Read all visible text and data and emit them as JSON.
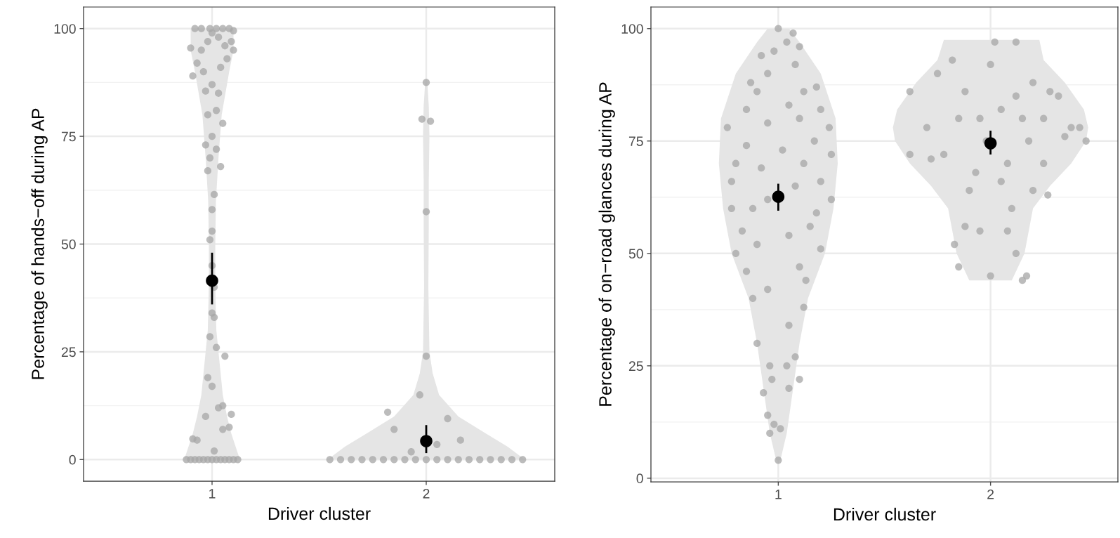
{
  "chart_data": [
    {
      "type": "scatter",
      "xlabel": "Driver cluster",
      "ylabel": "Percentage of hands−off during AP",
      "xlim": [
        0.4,
        2.6
      ],
      "xticks": [
        1,
        2
      ],
      "ylim": [
        -5,
        105
      ],
      "yticks": [
        0,
        25,
        50,
        75,
        100
      ],
      "grid": true,
      "series": [
        {
          "type": "area",
          "marker": "none",
          "color": "#e5e5e5",
          "x": [
            0.87,
            0.89,
            0.91,
            0.93,
            0.95,
            0.96,
            0.98,
            0.985,
            0.985,
            0.982,
            0.97,
            0.955,
            0.92,
            0.9,
            0.9,
            1.1,
            1.1,
            1.08,
            1.045,
            1.03,
            1.018,
            1.015,
            1.015,
            1.02,
            1.04,
            1.05,
            1.07,
            1.09,
            1.11,
            1.13
          ],
          "values": [
            0,
            3,
            6,
            10,
            15,
            20,
            30,
            40,
            50,
            60,
            70,
            80,
            90,
            95,
            100,
            100,
            95,
            90,
            80,
            70,
            60,
            50,
            40,
            30,
            20,
            15,
            10,
            6,
            3,
            0
          ]
        },
        {
          "type": "area",
          "marker": "none",
          "color": "#e5e5e5",
          "x": [
            1.54,
            1.62,
            1.72,
            1.85,
            1.94,
            1.97,
            1.985,
            1.99,
            1.988,
            1.988,
            1.985,
            1.988,
            1.995,
            2.005,
            2.012,
            2.015,
            2.012,
            2.012,
            2.01,
            2.015,
            2.03,
            2.06,
            2.15,
            2.28,
            2.38,
            2.46
          ],
          "values": [
            0,
            3,
            6,
            10,
            15,
            20,
            25,
            40,
            55,
            65,
            75,
            82,
            87.5,
            87.5,
            82,
            75,
            65,
            55,
            40,
            25,
            20,
            15,
            10,
            6,
            3,
            0
          ]
        },
        {
          "color": "#a6a6a6",
          "x": [
            0.88,
            0.9,
            0.92,
            0.94,
            0.96,
            0.98,
            1.0,
            1.02,
            1.04,
            1.06,
            1.08,
            1.1,
            1.12,
            0.93,
            0.97,
            1.05,
            1.08,
            0.91,
            1.01,
            0.98,
            1.0,
            1.03,
            1.06,
            1.02,
            0.99,
            1.01,
            1.0,
            1.01,
            1.05,
            1.09,
            1.0,
            0.99,
            1.0,
            1.0,
            1.01,
            1.04,
            0.98,
            0.99,
            1.02,
            0.97,
            1.0,
            1.05,
            0.98,
            1.02,
            1.03,
            1.0,
            0.97,
            0.91,
            0.93,
            0.95,
            0.98,
            1.0,
            1.03,
            1.06,
            1.09,
            1.1,
            0.92,
            0.95,
            0.99,
            1.02,
            1.05,
            1.08,
            1.1,
            0.96,
            1.04,
            1.07,
            0.9
          ],
          "values": [
            0,
            0,
            0,
            0,
            0,
            0,
            0,
            0,
            0,
            0,
            0,
            0,
            0,
            4.5,
            10,
            7,
            7.5,
            4.8,
            2,
            19,
            17,
            12,
            24,
            26,
            28.5,
            33,
            34,
            40,
            12.5,
            10.5,
            45,
            51,
            53,
            58,
            61.5,
            68,
            67,
            70,
            72,
            73,
            75,
            78,
            80,
            81,
            85,
            87,
            85.5,
            89,
            92,
            95,
            97,
            99,
            98,
            96,
            97,
            99.5,
            100,
            100,
            100,
            100,
            100,
            100,
            95,
            90,
            91,
            93,
            95.5
          ]
        },
        {
          "color": "#a6a6a6",
          "x": [
            1.55,
            1.6,
            1.65,
            1.7,
            1.75,
            1.8,
            1.85,
            1.9,
            1.95,
            2.0,
            2.05,
            2.1,
            2.15,
            2.2,
            2.25,
            2.3,
            2.35,
            2.4,
            2.45,
            1.82,
            1.85,
            1.97,
            2.0,
            2.0,
            1.98,
            2.02,
            2.0,
            2.1,
            2.16,
            1.93,
            2.05
          ],
          "values": [
            0,
            0,
            0,
            0,
            0,
            0,
            0,
            0,
            0,
            0,
            0,
            0,
            0,
            0,
            0,
            0,
            0,
            0,
            0,
            11,
            7,
            15,
            24,
            57.5,
            79,
            78.5,
            87.5,
            9.5,
            4.5,
            1.8,
            3.5
          ]
        },
        {
          "color": "#000000",
          "x": [
            1,
            2
          ],
          "values": [
            41.5,
            4.3
          ],
          "errors": [
            [
              36,
              48
            ],
            [
              1.5,
              8
            ]
          ]
        }
      ]
    },
    {
      "type": "scatter",
      "xlabel": "Driver cluster",
      "ylabel": "Percentage of on−road glances during AP",
      "xlim": [
        0.4,
        2.6
      ],
      "xticks": [
        1,
        2
      ],
      "ylim": [
        -0.8,
        104.8
      ],
      "yticks": [
        0,
        25,
        50,
        75,
        100
      ],
      "grid": true,
      "series": [
        {
          "type": "area",
          "marker": "none",
          "color": "#e5e5e5",
          "x": [
            0.99,
            0.96,
            0.93,
            0.9,
            0.86,
            0.78,
            0.74,
            0.72,
            0.73,
            0.8,
            0.9,
            0.95,
            1.05,
            1.1,
            1.2,
            1.27,
            1.28,
            1.26,
            1.22,
            1.14,
            1.1,
            1.07,
            1.04,
            1.01
          ],
          "values": [
            4,
            10,
            20,
            30,
            40,
            50,
            60,
            70,
            80,
            90,
            97,
            100,
            100,
            97,
            90,
            80,
            70,
            60,
            50,
            40,
            30,
            20,
            10,
            4
          ]
        },
        {
          "type": "area",
          "marker": "none",
          "color": "#e5e5e5",
          "x": [
            1.9,
            1.84,
            1.82,
            1.8,
            1.72,
            1.62,
            1.55,
            1.54,
            1.56,
            1.65,
            1.75,
            1.78,
            2.23,
            2.25,
            2.35,
            2.44,
            2.46,
            2.45,
            2.38,
            2.28,
            2.2,
            2.18,
            2.16,
            2.1
          ],
          "values": [
            44,
            50,
            55,
            60,
            65,
            70,
            75,
            78,
            82,
            88,
            93,
            97.5,
            97.5,
            93,
            88,
            82,
            78,
            75,
            70,
            65,
            60,
            55,
            50,
            44
          ]
        },
        {
          "color": "#a6a6a6",
          "x": [
            1.0,
            0.96,
            0.98,
            1.01,
            0.95,
            0.93,
            0.97,
            1.05,
            1.04,
            0.96,
            1.1,
            1.08,
            0.9,
            1.12,
            1.05,
            0.88,
            0.95,
            1.13,
            0.85,
            1.1,
            0.8,
            0.9,
            1.2,
            0.83,
            1.05,
            1.15,
            0.78,
            0.88,
            1.18,
            0.95,
            1.25,
            0.78,
            1.08,
            1.2,
            0.8,
            0.92,
            1.12,
            1.25,
            0.85,
            1.02,
            1.17,
            0.76,
            0.95,
            1.1,
            1.24,
            0.85,
            1.05,
            1.2,
            0.9,
            1.12,
            0.95,
            1.08,
            0.98,
            1.04,
            1.1,
            1.0,
            0.92,
            1.07,
            0.87,
            1.18
          ],
          "values": [
            4,
            10,
            12,
            11,
            14,
            19,
            22,
            20,
            25,
            25,
            22,
            27,
            30,
            38,
            34,
            40,
            42,
            44,
            46,
            47,
            50,
            52,
            51,
            55,
            54,
            56,
            60,
            60,
            59,
            62,
            62,
            66,
            65,
            66,
            70,
            69,
            70,
            72,
            74,
            73,
            75,
            78,
            79,
            80,
            78,
            82,
            83,
            82,
            86,
            86,
            90,
            92,
            95,
            97,
            96,
            100,
            94,
            99,
            88,
            87
          ]
        },
        {
          "color": "#a6a6a6",
          "x": [
            1.62,
            1.62,
            1.7,
            1.75,
            1.78,
            1.85,
            1.82,
            1.88,
            1.9,
            1.95,
            1.98,
            2.0,
            2.05,
            2.08,
            2.1,
            2.12,
            2.15,
            2.18,
            2.2,
            2.25,
            2.28,
            2.32,
            2.35,
            2.38,
            2.42,
            2.45,
            1.88,
            1.83,
            1.85,
            1.95,
            2.0,
            2.12,
            2.15,
            2.17,
            2.08,
            2.2,
            2.25,
            2.02,
            2.12,
            1.93,
            1.72,
            2.27,
            2.05
          ],
          "values": [
            86,
            72,
            78,
            90,
            72,
            80,
            93,
            86,
            64,
            80,
            75,
            92,
            82,
            70,
            60,
            85,
            80,
            75,
            88,
            80,
            86,
            85,
            76,
            78,
            78,
            75,
            56,
            52,
            47,
            55,
            45,
            50,
            44,
            45,
            55,
            64,
            70,
            97,
            97,
            68,
            71,
            63,
            66
          ]
        },
        {
          "color": "#000000",
          "x": [
            1,
            2
          ],
          "values": [
            62.6,
            74.5
          ],
          "errors": [
            [
              59.5,
              65.5
            ],
            [
              72,
              77.3
            ]
          ]
        }
      ]
    }
  ]
}
